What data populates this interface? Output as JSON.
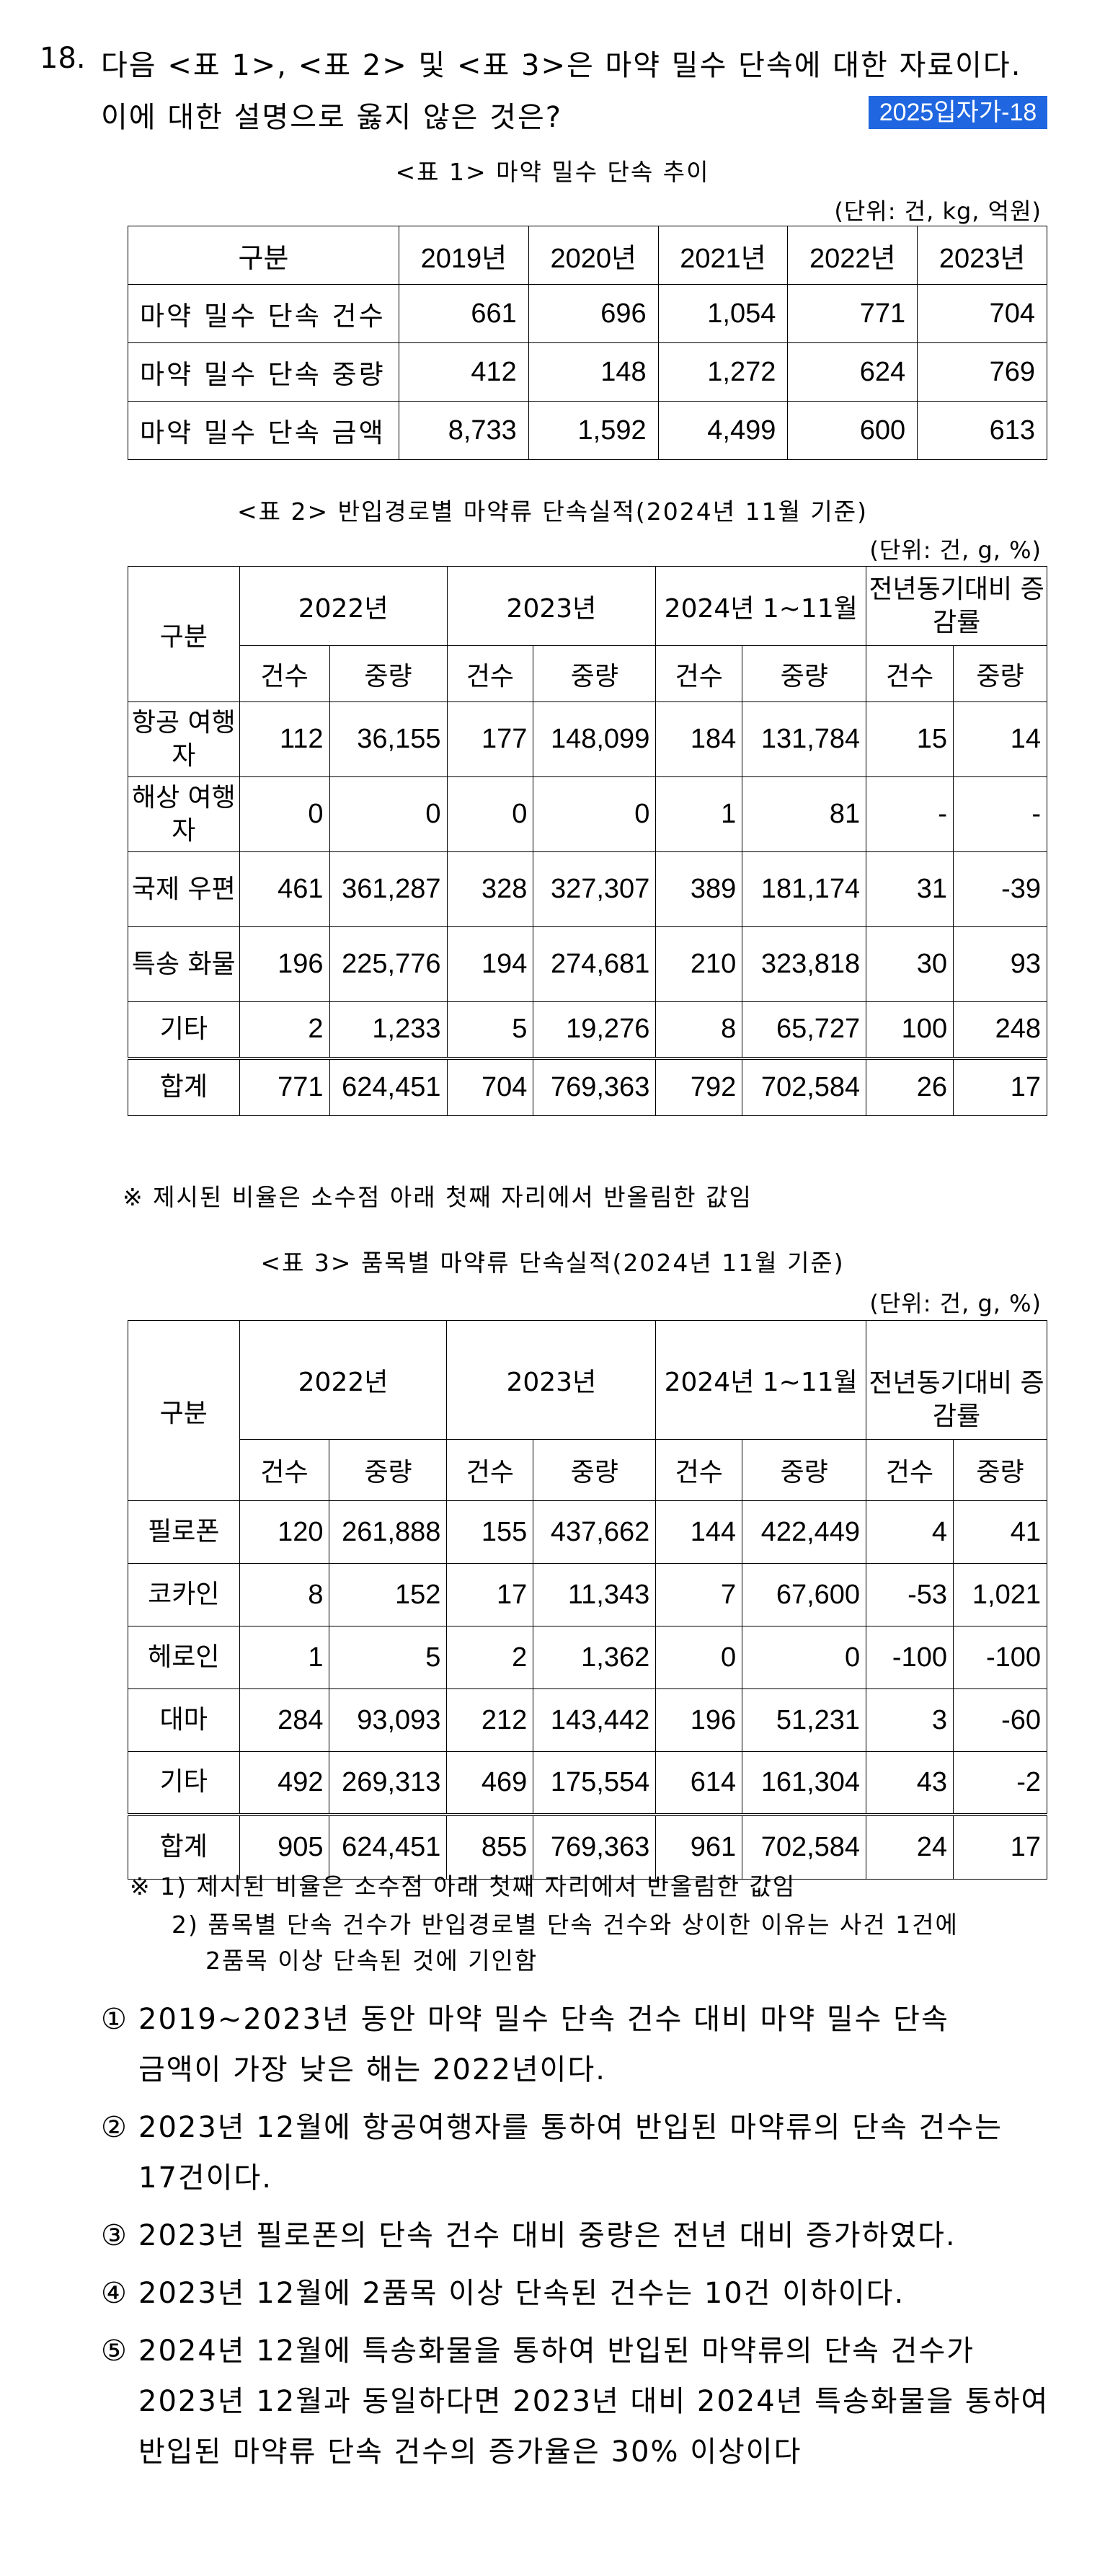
{
  "question": {
    "number": "18.",
    "line1": "다음 <표 1>, <표 2> 및 <표 3>은 마약 밀수 단속에 대한 자료이다.",
    "line2": "이에 대한 설명으로 옳지 않은 것은?",
    "tag": "2025입자가-18"
  },
  "table1": {
    "caption": "<표 1> 마약 밀수 단속 추이",
    "unit": "(단위: 건, kg, 억원)",
    "headers": [
      "구분",
      "2019년",
      "2020년",
      "2021년",
      "2022년",
      "2023년"
    ],
    "rows": [
      {
        "label": "마약 밀수 단속 건수",
        "values": [
          "661",
          "696",
          "1,054",
          "771",
          "704"
        ]
      },
      {
        "label": "마약 밀수 단속 중량",
        "values": [
          "412",
          "148",
          "1,272",
          "624",
          "769"
        ]
      },
      {
        "label": "마약 밀수 단속 금액",
        "values": [
          "8,733",
          "1,592",
          "4,499",
          "600",
          "613"
        ]
      }
    ]
  },
  "table2": {
    "caption": "<표 2> 반입경로별 마약류 단속실적(2024년 11월 기준)",
    "unit": "(단위: 건, g, %)",
    "corner": "구분",
    "groups": [
      "2022년",
      "2023년",
      "2024년 1~11월",
      "전년동기대비 증감률"
    ],
    "subheaders": [
      "건수",
      "중량",
      "건수",
      "중량",
      "건수",
      "중량",
      "건수",
      "중량"
    ],
    "rows": [
      {
        "label": "항공 여행자",
        "values": [
          "112",
          "36,155",
          "177",
          "148,099",
          "184",
          "131,784",
          "15",
          "14"
        ]
      },
      {
        "label": "해상 여행자",
        "values": [
          "0",
          "0",
          "0",
          "0",
          "1",
          "81",
          "-",
          "-"
        ]
      },
      {
        "label": "국제 우편",
        "values": [
          "461",
          "361,287",
          "328",
          "327,307",
          "389",
          "181,174",
          "31",
          "-39"
        ]
      },
      {
        "label": "특송 화물",
        "values": [
          "196",
          "225,776",
          "194",
          "274,681",
          "210",
          "323,818",
          "30",
          "93"
        ]
      },
      {
        "label": "기타",
        "values": [
          "2",
          "1,233",
          "5",
          "19,276",
          "8",
          "65,727",
          "100",
          "248"
        ]
      },
      {
        "label": "합계",
        "values": [
          "771",
          "624,451",
          "704",
          "769,363",
          "792",
          "702,584",
          "26",
          "17"
        ]
      }
    ],
    "note": "※ 제시된 비율은 소수점 아래 첫째 자리에서 반올림한 값임"
  },
  "table3": {
    "caption": "<표 3> 품목별 마약류 단속실적(2024년 11월 기준)",
    "unit": "(단위: 건, g, %)",
    "corner": "구분",
    "groups": [
      "2022년",
      "2023년",
      "2024년 1~11월",
      "전년동기대비 증감률"
    ],
    "subheaders": [
      "건수",
      "중량",
      "건수",
      "중량",
      "건수",
      "중량",
      "건수",
      "중량"
    ],
    "rows": [
      {
        "label": "필로폰",
        "values": [
          "120",
          "261,888",
          "155",
          "437,662",
          "144",
          "422,449",
          "4",
          "41"
        ]
      },
      {
        "label": "코카인",
        "values": [
          "8",
          "152",
          "17",
          "11,343",
          "7",
          "67,600",
          "-53",
          "1,021"
        ]
      },
      {
        "label": "헤로인",
        "values": [
          "1",
          "5",
          "2",
          "1,362",
          "0",
          "0",
          "-100",
          "-100"
        ]
      },
      {
        "label": "대마",
        "values": [
          "284",
          "93,093",
          "212",
          "143,442",
          "196",
          "51,231",
          "3",
          "-60"
        ]
      },
      {
        "label": "기타",
        "values": [
          "492",
          "269,313",
          "469",
          "175,554",
          "614",
          "161,304",
          "43",
          "-2"
        ]
      },
      {
        "label": "합계",
        "values": [
          "905",
          "624,451",
          "855",
          "769,363",
          "961",
          "702,584",
          "24",
          "17"
        ]
      }
    ],
    "notes": [
      "※ 1) 제시된 비율은 소수점 아래 첫째 자리에서 반올림한 값임",
      "2) 품목별 단속 건수가 반입경로별 단속 건수와 상이한 이유는 사건 1건에",
      "2품목 이상 단속된 것에 기인함"
    ]
  },
  "choices": [
    {
      "mark": "①",
      "lines": [
        "2019~2023년 동안 마약 밀수 단속 건수 대비 마약 밀수 단속",
        "금액이 가장 낮은 해는 2022년이다."
      ]
    },
    {
      "mark": "②",
      "lines": [
        "2023년 12월에 항공여행자를 통하여 반입된 마약류의 단속 건수는",
        "17건이다."
      ]
    },
    {
      "mark": "③",
      "lines": [
        "2023년 필로폰의 단속 건수 대비 중량은 전년 대비 증가하였다."
      ]
    },
    {
      "mark": "④",
      "lines": [
        "2023년 12월에 2품목 이상 단속된 건수는 10건 이하이다."
      ]
    },
    {
      "mark": "⑤",
      "lines": [
        "2024년 12월에 특송화물을 통하여 반입된 마약류의 단속 건수가",
        "2023년 12월과 동일하다면 2023년 대비 2024년 특송화물을 통하여",
        "반입된 마약류 단속 건수의 증가율은 30% 이상이다"
      ]
    }
  ]
}
